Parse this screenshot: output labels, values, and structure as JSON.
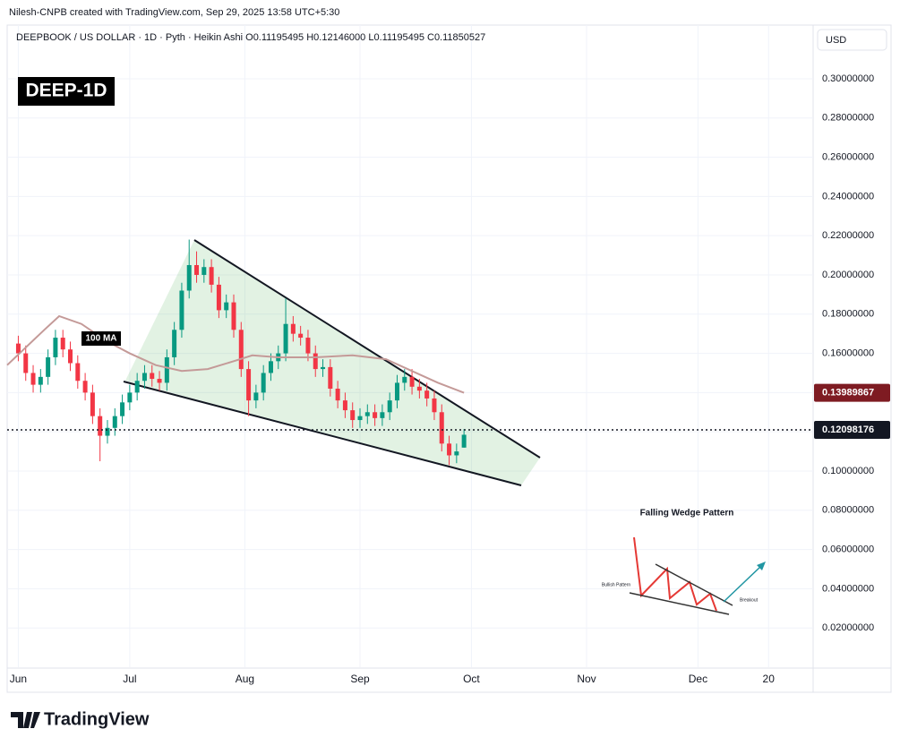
{
  "chart_data": {
    "type": "candlestick",
    "credit": "Nilesh-CNPB created with TradingView.com, Sep 29, 2025 13:58 UTC+5:30",
    "header": "DEEPBOOK / US DOLLAR · 1D · Pyth · Heikin Ashi  O0.11195495  H0.12146000  L0.11195495  C0.11850527",
    "badge": "DEEP-1D",
    "currency": "USD",
    "brand": "TradingView",
    "up_color": "#089981",
    "down_color": "#f23645",
    "xlim": [
      "2025-05-29",
      "2026-01-01"
    ],
    "xticks": [
      {
        "value": "2025-06-01",
        "label": "Jun"
      },
      {
        "value": "2025-07-01",
        "label": "Jul"
      },
      {
        "value": "2025-08-01",
        "label": "Aug"
      },
      {
        "value": "2025-09-01",
        "label": "Sep"
      },
      {
        "value": "2025-10-01",
        "label": "Oct"
      },
      {
        "value": "2025-11-01",
        "label": "Nov"
      },
      {
        "value": "2025-12-01",
        "label": "Dec"
      },
      {
        "value": "2025-12-20",
        "label": "20"
      }
    ],
    "ylim": [
      0,
      0.326
    ],
    "yticks": [
      {
        "value": 0.02,
        "label": "0.02000000"
      },
      {
        "value": 0.04,
        "label": "0.04000000"
      },
      {
        "value": 0.06,
        "label": "0.06000000"
      },
      {
        "value": 0.08,
        "label": "0.08000000"
      },
      {
        "value": 0.1,
        "label": "0.10000000"
      },
      {
        "value": 0.12,
        "label": "0.12000000"
      },
      {
        "value": 0.14,
        "label": "0.14000000"
      },
      {
        "value": 0.16,
        "label": "0.16000000"
      },
      {
        "value": 0.18,
        "label": "0.18000000"
      },
      {
        "value": 0.2,
        "label": "0.20000000"
      },
      {
        "value": 0.22,
        "label": "0.22000000"
      },
      {
        "value": 0.24,
        "label": "0.24000000"
      },
      {
        "value": 0.26,
        "label": "0.26000000"
      },
      {
        "value": 0.28,
        "label": "0.28000000"
      },
      {
        "value": 0.3,
        "label": "0.30000000"
      }
    ],
    "grid": true,
    "x": [
      "2025-06-01",
      "2025-06-03",
      "2025-06-05",
      "2025-06-07",
      "2025-06-09",
      "2025-06-11",
      "2025-06-13",
      "2025-06-15",
      "2025-06-17",
      "2025-06-19",
      "2025-06-21",
      "2025-06-23",
      "2025-06-25",
      "2025-06-27",
      "2025-06-29",
      "2025-07-01",
      "2025-07-03",
      "2025-07-05",
      "2025-07-07",
      "2025-07-09",
      "2025-07-11",
      "2025-07-13",
      "2025-07-15",
      "2025-07-17",
      "2025-07-19",
      "2025-07-21",
      "2025-07-23",
      "2025-07-25",
      "2025-07-27",
      "2025-07-29",
      "2025-07-31",
      "2025-08-02",
      "2025-08-04",
      "2025-08-06",
      "2025-08-08",
      "2025-08-10",
      "2025-08-12",
      "2025-08-14",
      "2025-08-16",
      "2025-08-18",
      "2025-08-20",
      "2025-08-22",
      "2025-08-24",
      "2025-08-26",
      "2025-08-28",
      "2025-08-30",
      "2025-09-01",
      "2025-09-03",
      "2025-09-05",
      "2025-09-07",
      "2025-09-09",
      "2025-09-11",
      "2025-09-13",
      "2025-09-15",
      "2025-09-17",
      "2025-09-19",
      "2025-09-21",
      "2025-09-23",
      "2025-09-25",
      "2025-09-27",
      "2025-09-29"
    ],
    "open": [
      0.165,
      0.16,
      0.15,
      0.144,
      0.148,
      0.158,
      0.168,
      0.162,
      0.155,
      0.146,
      0.14,
      0.128,
      0.118,
      0.122,
      0.128,
      0.135,
      0.14,
      0.146,
      0.15,
      0.147,
      0.145,
      0.158,
      0.172,
      0.192,
      0.205,
      0.2,
      0.204,
      0.195,
      0.182,
      0.186,
      0.172,
      0.152,
      0.136,
      0.14,
      0.15,
      0.156,
      0.16,
      0.175,
      0.17,
      0.168,
      0.16,
      0.152,
      0.153,
      0.142,
      0.136,
      0.131,
      0.126,
      0.128,
      0.13,
      0.127,
      0.13,
      0.136,
      0.145,
      0.148,
      0.143,
      0.141,
      0.137,
      0.13,
      0.114,
      0.108,
      0.11195495
    ],
    "high": [
      0.169,
      0.164,
      0.154,
      0.152,
      0.162,
      0.172,
      0.172,
      0.166,
      0.159,
      0.15,
      0.144,
      0.132,
      0.126,
      0.132,
      0.139,
      0.144,
      0.15,
      0.154,
      0.154,
      0.151,
      0.162,
      0.176,
      0.196,
      0.218,
      0.212,
      0.208,
      0.208,
      0.199,
      0.19,
      0.19,
      0.176,
      0.156,
      0.144,
      0.154,
      0.16,
      0.164,
      0.188,
      0.179,
      0.174,
      0.172,
      0.164,
      0.157,
      0.157,
      0.146,
      0.14,
      0.135,
      0.132,
      0.134,
      0.134,
      0.134,
      0.14,
      0.149,
      0.152,
      0.152,
      0.147,
      0.145,
      0.141,
      0.134,
      0.118,
      0.114,
      0.12146
    ],
    "low": [
      0.156,
      0.146,
      0.14,
      0.14,
      0.144,
      0.154,
      0.158,
      0.151,
      0.142,
      0.136,
      0.124,
      0.105,
      0.114,
      0.118,
      0.124,
      0.131,
      0.136,
      0.142,
      0.143,
      0.141,
      0.141,
      0.154,
      0.168,
      0.188,
      0.196,
      0.196,
      0.191,
      0.178,
      0.178,
      0.168,
      0.148,
      0.128,
      0.132,
      0.136,
      0.146,
      0.152,
      0.156,
      0.166,
      0.164,
      0.156,
      0.148,
      0.148,
      0.138,
      0.132,
      0.127,
      0.122,
      0.122,
      0.124,
      0.123,
      0.123,
      0.126,
      0.132,
      0.141,
      0.139,
      0.137,
      0.133,
      0.126,
      0.11,
      0.103,
      0.104,
      0.11195495
    ],
    "close": [
      0.16,
      0.15,
      0.144,
      0.148,
      0.158,
      0.168,
      0.162,
      0.155,
      0.146,
      0.14,
      0.128,
      0.118,
      0.122,
      0.128,
      0.135,
      0.14,
      0.146,
      0.15,
      0.147,
      0.145,
      0.158,
      0.172,
      0.192,
      0.205,
      0.2,
      0.204,
      0.195,
      0.182,
      0.186,
      0.172,
      0.152,
      0.136,
      0.14,
      0.15,
      0.156,
      0.16,
      0.175,
      0.17,
      0.168,
      0.16,
      0.152,
      0.153,
      0.142,
      0.136,
      0.131,
      0.126,
      0.128,
      0.13,
      0.127,
      0.13,
      0.136,
      0.145,
      0.148,
      0.143,
      0.141,
      0.137,
      0.13,
      0.114,
      0.108,
      0.11,
      0.11850527
    ],
    "last_price": 0.12098176,
    "ma": {
      "name": "100 MA",
      "color": "#c49a98",
      "x": [
        "2025-05-29",
        "2025-06-08",
        "2025-06-12",
        "2025-06-18",
        "2025-06-25",
        "2025-07-01",
        "2025-07-08",
        "2025-07-15",
        "2025-07-22",
        "2025-07-29",
        "2025-08-03",
        "2025-08-10",
        "2025-08-20",
        "2025-08-30",
        "2025-09-08",
        "2025-09-15",
        "2025-09-22",
        "2025-09-29"
      ],
      "values": [
        0.154,
        0.172,
        0.179,
        0.175,
        0.166,
        0.16,
        0.154,
        0.151,
        0.152,
        0.156,
        0.159,
        0.158,
        0.158,
        0.159,
        0.157,
        0.151,
        0.145,
        0.13989867
      ]
    },
    "inset": {
      "title": "Falling Wedge Pattern",
      "left_label": "Bullish Pattern",
      "right_label": "Breakout"
    }
  }
}
